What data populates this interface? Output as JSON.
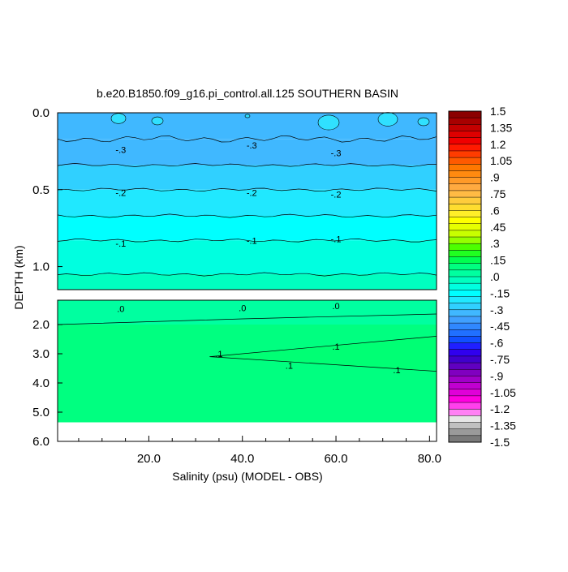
{
  "chart_data": {
    "type": "heatmap",
    "title": "b.e20.B1850.f09_g16.pi_control.all.125 SOUTHERN BASIN",
    "xlabel": "Salinity (psu) (MODEL - OBS)",
    "ylabel": "DEPTH (km)",
    "xlim": [
      0.5,
      81.5
    ],
    "x_ticks": [
      20.0,
      40.0,
      60.0,
      80.0
    ],
    "x_tick_labels": [
      "20.0",
      "40.0",
      "60.0",
      "80.0"
    ],
    "upper_panel": {
      "ylim": [
        0.0,
        1.15
      ],
      "y_ticks": [
        0.0,
        0.5,
        1.0
      ],
      "y_tick_labels": [
        "0.0",
        "0.5",
        "1.0"
      ],
      "bands": [
        {
          "top": 0.0,
          "bottom": 0.17,
          "value": -0.35
        },
        {
          "top": 0.17,
          "bottom": 0.34,
          "value": -0.3
        },
        {
          "top": 0.34,
          "bottom": 0.5,
          "value": -0.25
        },
        {
          "top": 0.5,
          "bottom": 0.67,
          "value": -0.2
        },
        {
          "top": 0.67,
          "bottom": 0.83,
          "value": -0.15
        },
        {
          "top": 0.83,
          "bottom": 1.05,
          "value": -0.1
        },
        {
          "top": 1.05,
          "bottom": 1.15,
          "value": -0.05
        }
      ],
      "contour_labels": [
        {
          "text": "-.3",
          "x": 14,
          "y": 0.24
        },
        {
          "text": "-.3",
          "x": 42,
          "y": 0.21
        },
        {
          "text": "-.3",
          "x": 60,
          "y": 0.26
        },
        {
          "text": "-.2",
          "x": 14,
          "y": 0.52
        },
        {
          "text": "-.2",
          "x": 42,
          "y": 0.52
        },
        {
          "text": "-.2",
          "x": 60,
          "y": 0.53
        },
        {
          "text": "-.1",
          "x": 14,
          "y": 0.85
        },
        {
          "text": "-.1",
          "x": 42,
          "y": 0.83
        },
        {
          "text": "-.1",
          "x": 60,
          "y": 0.82
        }
      ]
    },
    "lower_panel": {
      "ylim": [
        1.15,
        6.0
      ],
      "y_ticks": [
        2.0,
        3.0,
        4.0,
        5.0,
        6.0
      ],
      "y_tick_labels": [
        "2.0",
        "3.0",
        "4.0",
        "5.0",
        "6.0"
      ],
      "data_bottom": 5.35,
      "bands": [
        {
          "top": 1.15,
          "bottom": 2.0,
          "value": 0.05
        },
        {
          "top": 2.0,
          "bottom": 5.35,
          "value": 0.1
        }
      ],
      "contour_labels": [
        {
          "text": ".0",
          "x": 14,
          "y": 1.45
        },
        {
          "text": ".0",
          "x": 40,
          "y": 1.42
        },
        {
          "text": ".0",
          "x": 60,
          "y": 1.35
        },
        {
          "text": ".1",
          "x": 35,
          "y": 3.0
        },
        {
          "text": ".1",
          "x": 60,
          "y": 2.75
        },
        {
          "text": ".1",
          "x": 50,
          "y": 3.4
        },
        {
          "text": ".1",
          "x": 73,
          "y": 3.55
        }
      ]
    },
    "colorbar": {
      "labels": [
        "1.5",
        "1.35",
        "1.2",
        "1.05",
        ".9",
        ".75",
        ".6",
        ".45",
        ".3",
        ".15",
        ".0",
        "-.15",
        "-.3",
        "-.45",
        "-.6",
        "-.75",
        "-.9",
        "-1.05",
        "-1.2",
        "-1.35",
        "-1.5"
      ],
      "level_colors": [
        "#8b0000",
        "#a80000",
        "#c40000",
        "#dd0000",
        "#f00000",
        "#ff1a00",
        "#ff3c00",
        "#ff5a00",
        "#ff7800",
        "#ff8a10",
        "#ff9a28",
        "#ffaa40",
        "#ffbb44",
        "#ffcc3c",
        "#ffdd30",
        "#ffee28",
        "#ffff00",
        "#e6ff00",
        "#c8ff00",
        "#96ff00",
        "#4cff00",
        "#20ff20",
        "#00ff50",
        "#00ff80",
        "#00ffa0",
        "#00ffc0",
        "#00ffe0",
        "#00ffff",
        "#20e8ff",
        "#30d0ff",
        "#40b8ff",
        "#40a0ff",
        "#3088ff",
        "#2070ff",
        "#1050ff",
        "#2020ff",
        "#3000ee",
        "#4000cc",
        "#6000c0",
        "#8000c0",
        "#a000c8",
        "#c000d0",
        "#e000d8",
        "#ff00e0",
        "#ff40ec",
        "#ff80f4",
        "#e6e6e6",
        "#c0c0c0",
        "#9a9a9a",
        "#7a7a7a"
      ]
    }
  }
}
